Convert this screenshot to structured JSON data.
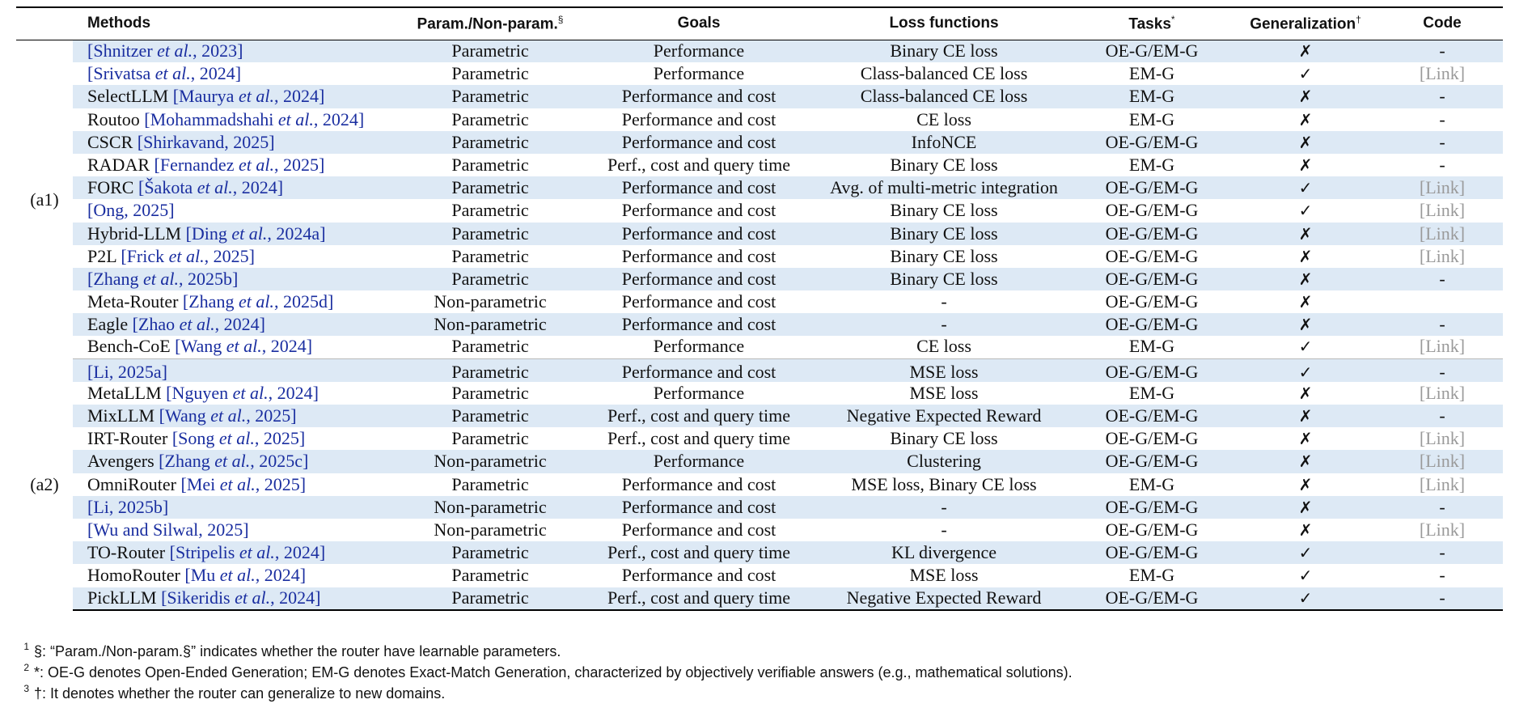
{
  "table": {
    "headers": {
      "methods": "Methods",
      "param": "Param./Non-param.",
      "param_mark": "§",
      "goals": "Goals",
      "loss": "Loss functions",
      "tasks": "Tasks",
      "tasks_mark": "*",
      "gen": "Generalization",
      "gen_mark": "†",
      "code": "Code"
    },
    "groups": [
      {
        "label": "(a1)",
        "rows": [
          {
            "prefix": "",
            "cite": "Shnitzer",
            "etal": " et al.",
            "year": ", 2023",
            "param": "Parametric",
            "goals": "Performance",
            "loss": "Binary CE loss",
            "tasks": "OE-G/EM-G",
            "gen": "✗",
            "code": "-"
          },
          {
            "prefix": "",
            "cite": "Srivatsa",
            "etal": " et al.",
            "year": ", 2024",
            "param": "Parametric",
            "goals": "Performance",
            "loss": "Class-balanced CE loss",
            "tasks": "EM-G",
            "gen": "✓",
            "code": "[Link]"
          },
          {
            "prefix": "SelectLLM ",
            "cite": "Maurya",
            "etal": " et al.",
            "year": ", 2024",
            "param": "Parametric",
            "goals": "Performance and cost",
            "loss": "Class-balanced CE loss",
            "tasks": "EM-G",
            "gen": "✗",
            "code": "-"
          },
          {
            "prefix": "Routoo ",
            "cite": "Mohammadshahi",
            "etal": " et al.",
            "year": ", 2024",
            "param": "Parametric",
            "goals": "Performance and cost",
            "loss": "CE loss",
            "tasks": "EM-G",
            "gen": "✗",
            "code": "-"
          },
          {
            "prefix": "CSCR ",
            "cite": "Shirkavand, 2025",
            "etal": "",
            "year": "",
            "param": "Parametric",
            "goals": "Performance and cost",
            "loss": "InfoNCE",
            "tasks": "OE-G/EM-G",
            "gen": "✗",
            "code": "-"
          },
          {
            "prefix": "RADAR ",
            "cite": "Fernandez",
            "etal": " et al.",
            "year": ", 2025",
            "param": "Parametric",
            "goals": "Perf., cost and query time",
            "loss": "Binary CE loss",
            "tasks": "EM-G",
            "gen": "✗",
            "code": "-"
          },
          {
            "prefix": "FORC ",
            "cite": "Šakota",
            "etal": " et al.",
            "year": ", 2024",
            "param": "Parametric",
            "goals": "Performance and cost",
            "loss": "Avg. of multi-metric integration",
            "tasks": "OE-G/EM-G",
            "gen": "✓",
            "code": "[Link]"
          },
          {
            "prefix": "",
            "cite": "Ong, 2025",
            "etal": "",
            "year": "",
            "param": "Parametric",
            "goals": "Performance and cost",
            "loss": "Binary CE loss",
            "tasks": "OE-G/EM-G",
            "gen": "✓",
            "code": "[Link]"
          },
          {
            "prefix": "Hybrid-LLM ",
            "cite": "Ding",
            "etal": " et al.",
            "year": ", 2024a",
            "param": "Parametric",
            "goals": "Performance and cost",
            "loss": "Binary CE loss",
            "tasks": "OE-G/EM-G",
            "gen": "✗",
            "code": "[Link]"
          },
          {
            "prefix": "P2L ",
            "cite": "Frick",
            "etal": " et al.",
            "year": ", 2025",
            "param": "Parametric",
            "goals": "Performance and cost",
            "loss": "Binary CE loss",
            "tasks": "OE-G/EM-G",
            "gen": "✗",
            "code": "[Link]"
          },
          {
            "prefix": "",
            "cite": "Zhang",
            "etal": " et al.",
            "year": ", 2025b",
            "param": "Parametric",
            "goals": "Performance and cost",
            "loss": "Binary CE loss",
            "tasks": "OE-G/EM-G",
            "gen": "✗",
            "code": "-"
          },
          {
            "prefix": "Meta-Router ",
            "cite": "Zhang",
            "etal": " et al.",
            "year": ", 2025d",
            "param": "Non-parametric",
            "goals": "Performance and cost",
            "loss": "-",
            "tasks": "OE-G/EM-G",
            "gen": "✗",
            "code": ""
          },
          {
            "prefix": "Eagle ",
            "cite": "Zhao",
            "etal": " et al.",
            "year": ", 2024",
            "param": "Non-parametric",
            "goals": "Performance and cost",
            "loss": "-",
            "tasks": "OE-G/EM-G",
            "gen": "✗",
            "code": "-"
          },
          {
            "prefix": "Bench-CoE ",
            "cite": "Wang",
            "etal": " et al.",
            "year": ", 2024",
            "param": "Parametric",
            "goals": "Performance",
            "loss": "CE loss",
            "tasks": "EM-G",
            "gen": "✓",
            "code": "[Link]"
          }
        ]
      },
      {
        "label": "(a2)",
        "rows": [
          {
            "prefix": "",
            "cite": "Li, 2025a",
            "etal": "",
            "year": "",
            "param": "Parametric",
            "goals": "Performance and cost",
            "loss": "MSE loss",
            "tasks": "OE-G/EM-G",
            "gen": "✓",
            "code": "-"
          },
          {
            "prefix": "MetaLLM ",
            "cite": "Nguyen",
            "etal": " et al.",
            "year": ", 2024",
            "param": "Parametric",
            "goals": "Performance",
            "loss": "MSE loss",
            "tasks": "EM-G",
            "gen": "✗",
            "code": "[Link]"
          },
          {
            "prefix": "MixLLM ",
            "cite": "Wang",
            "etal": " et al.",
            "year": ", 2025",
            "param": "Parametric",
            "goals": "Perf., cost and query time",
            "loss": "Negative Expected Reward",
            "tasks": "OE-G/EM-G",
            "gen": "✗",
            "code": "-"
          },
          {
            "prefix": "IRT-Router ",
            "cite": "Song",
            "etal": " et al.",
            "year": ", 2025",
            "param": "Parametric",
            "goals": "Perf., cost and query time",
            "loss": "Binary CE loss",
            "tasks": "OE-G/EM-G",
            "gen": "✗",
            "code": "[Link]"
          },
          {
            "prefix": "Avengers ",
            "cite": "Zhang",
            "etal": " et al.",
            "year": ", 2025c",
            "param": "Non-parametric",
            "goals": "Performance",
            "loss": "Clustering",
            "tasks": "OE-G/EM-G",
            "gen": "✗",
            "code": "[Link]"
          },
          {
            "prefix": "OmniRouter ",
            "cite": "Mei",
            "etal": " et al.",
            "year": ", 2025",
            "param": "Parametric",
            "goals": "Performance and cost",
            "loss": "MSE loss, Binary CE loss",
            "tasks": "EM-G",
            "gen": "✗",
            "code": "[Link]"
          },
          {
            "prefix": "",
            "cite": "Li, 2025b",
            "etal": "",
            "year": "",
            "param": "Non-parametric",
            "goals": "Performance and cost",
            "loss": "-",
            "tasks": "OE-G/EM-G",
            "gen": "✗",
            "code": "-"
          },
          {
            "prefix": "",
            "cite": "Wu and Silwal, 2025",
            "etal": "",
            "year": "",
            "param": "Non-parametric",
            "goals": "Performance and cost",
            "loss": "-",
            "tasks": "OE-G/EM-G",
            "gen": "✗",
            "code": "[Link]"
          },
          {
            "prefix": "TO-Router ",
            "cite": "Stripelis",
            "etal": " et al.",
            "year": ", 2024",
            "param": "Parametric",
            "goals": "Perf., cost and query time",
            "loss": "KL divergence",
            "tasks": "OE-G/EM-G",
            "gen": "✓",
            "code": "-"
          },
          {
            "prefix": "HomoRouter ",
            "cite": "Mu",
            "etal": " et al.",
            "year": ", 2024",
            "param": "Parametric",
            "goals": "Performance and cost",
            "loss": "MSE loss",
            "tasks": "EM-G",
            "gen": "✓",
            "code": "-"
          },
          {
            "prefix": "PickLLM ",
            "cite": "Sikeridis",
            "etal": " et al.",
            "year": ", 2024",
            "param": "Parametric",
            "goals": "Perf., cost and query time",
            "loss": "Negative Expected Reward",
            "tasks": "OE-G/EM-G",
            "gen": "✓",
            "code": "-"
          }
        ]
      }
    ]
  },
  "footnotes": [
    {
      "num": "1",
      "text": "§: “Param./Non-param.§” indicates whether the router have learnable parameters."
    },
    {
      "num": "2",
      "text": "*: OE-G denotes Open-Ended Generation; EM-G denotes Exact-Match Generation, characterized by objectively verifiable answers (e.g., mathematical solutions)."
    },
    {
      "num": "3",
      "text": "†: It denotes whether the router can generalize to new domains."
    }
  ]
}
